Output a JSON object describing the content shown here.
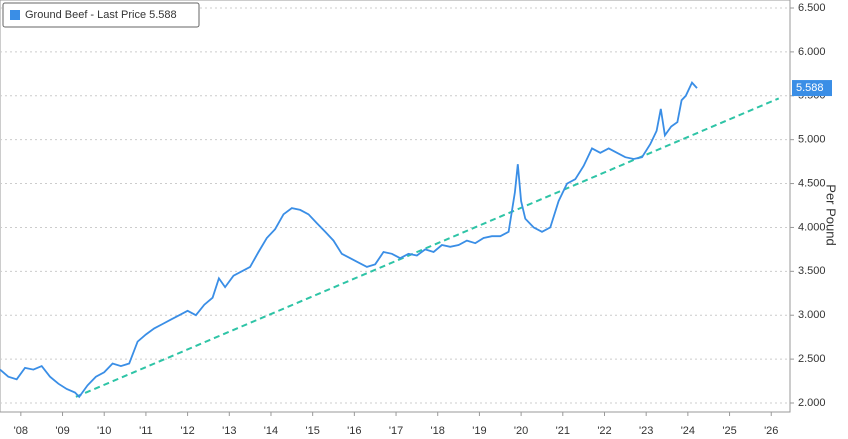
{
  "chart_data": {
    "type": "line",
    "legend": "Ground Beef - Last Price 5.588",
    "ylabel": "Per Pound",
    "last_label": "5.588",
    "last_value": 5.588,
    "series": [
      {
        "color": "#3a8ee6",
        "x": [
          2008.0,
          2008.2,
          2008.4,
          2008.6,
          2008.8,
          2009.0,
          2009.2,
          2009.4,
          2009.6,
          2009.8,
          2009.9,
          2010.1,
          2010.3,
          2010.5,
          2010.7,
          2010.9,
          2011.1,
          2011.3,
          2011.5,
          2011.7,
          2011.9,
          2012.1,
          2012.3,
          2012.5,
          2012.7,
          2012.9,
          2013.1,
          2013.25,
          2013.4,
          2013.6,
          2013.8,
          2014.0,
          2014.2,
          2014.4,
          2014.6,
          2014.8,
          2015.0,
          2015.2,
          2015.4,
          2015.6,
          2015.8,
          2016.0,
          2016.2,
          2016.4,
          2016.6,
          2016.8,
          2017.0,
          2017.2,
          2017.4,
          2017.6,
          2017.8,
          2018.0,
          2018.2,
          2018.4,
          2018.6,
          2018.8,
          2019.0,
          2019.2,
          2019.4,
          2019.6,
          2019.8,
          2020.0,
          2020.2,
          2020.35,
          2020.42,
          2020.5,
          2020.6,
          2020.8,
          2021.0,
          2021.2,
          2021.4,
          2021.6,
          2021.8,
          2022.0,
          2022.2,
          2022.4,
          2022.6,
          2022.8,
          2023.0,
          2023.2,
          2023.4,
          2023.6,
          2023.75,
          2023.85,
          2023.95,
          2024.1,
          2024.25,
          2024.35,
          2024.45,
          2024.6,
          2024.72
        ],
        "values": [
          2.38,
          2.3,
          2.27,
          2.4,
          2.38,
          2.42,
          2.3,
          2.22,
          2.16,
          2.12,
          2.07,
          2.2,
          2.3,
          2.35,
          2.45,
          2.42,
          2.45,
          2.7,
          2.78,
          2.85,
          2.9,
          2.95,
          3.0,
          3.05,
          3.0,
          3.12,
          3.2,
          3.42,
          3.32,
          3.45,
          3.5,
          3.55,
          3.72,
          3.88,
          3.98,
          4.15,
          4.22,
          4.2,
          4.15,
          4.05,
          3.95,
          3.85,
          3.7,
          3.65,
          3.6,
          3.55,
          3.58,
          3.72,
          3.7,
          3.65,
          3.7,
          3.68,
          3.75,
          3.72,
          3.8,
          3.78,
          3.8,
          3.85,
          3.82,
          3.88,
          3.9,
          3.9,
          3.95,
          4.4,
          4.72,
          4.3,
          4.1,
          4.0,
          3.95,
          4.0,
          4.3,
          4.5,
          4.55,
          4.7,
          4.9,
          4.85,
          4.9,
          4.85,
          4.8,
          4.78,
          4.8,
          4.95,
          5.1,
          5.35,
          5.05,
          5.15,
          5.2,
          5.45,
          5.5,
          5.65,
          5.588
        ]
      }
    ],
    "trendline": {
      "color": "#2ec4a6",
      "x": [
        2009.82,
        2026.68
      ],
      "values": [
        2.07,
        5.47
      ]
    },
    "xlim": [
      2008.0,
      2026.95
    ],
    "ylim": [
      2.0,
      6.5
    ],
    "xticks": [
      {
        "value": 2008.5,
        "label": "'08"
      },
      {
        "value": 2009.5,
        "label": "'09"
      },
      {
        "value": 2010.5,
        "label": "'10"
      },
      {
        "value": 2011.5,
        "label": "'11"
      },
      {
        "value": 2012.5,
        "label": "'12"
      },
      {
        "value": 2013.5,
        "label": "'13"
      },
      {
        "value": 2014.5,
        "label": "'14"
      },
      {
        "value": 2015.5,
        "label": "'15"
      },
      {
        "value": 2016.5,
        "label": "'16"
      },
      {
        "value": 2017.5,
        "label": "'17"
      },
      {
        "value": 2018.5,
        "label": "'18"
      },
      {
        "value": 2019.5,
        "label": "'19"
      },
      {
        "value": 2020.5,
        "label": "'20"
      },
      {
        "value": 2021.5,
        "label": "'21"
      },
      {
        "value": 2022.5,
        "label": "'22"
      },
      {
        "value": 2023.5,
        "label": "'23"
      },
      {
        "value": 2024.5,
        "label": "'24"
      },
      {
        "value": 2025.5,
        "label": "'25"
      },
      {
        "value": 2026.5,
        "label": "'26"
      }
    ],
    "yticks": [
      {
        "value": 2.0,
        "label": "2.000"
      },
      {
        "value": 2.5,
        "label": "2.500"
      },
      {
        "value": 3.0,
        "label": "3.000"
      },
      {
        "value": 3.5,
        "label": "3.500"
      },
      {
        "value": 4.0,
        "label": "4.000"
      },
      {
        "value": 4.5,
        "label": "4.500"
      },
      {
        "value": 5.0,
        "label": "5.000"
      },
      {
        "value": 5.5,
        "label": "5.500"
      },
      {
        "value": 6.0,
        "label": "6.000"
      },
      {
        "value": 6.5,
        "label": "6.500"
      }
    ],
    "grid": true
  }
}
